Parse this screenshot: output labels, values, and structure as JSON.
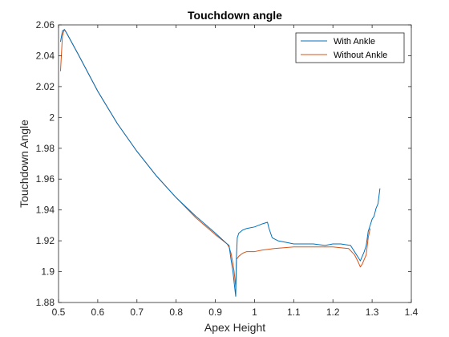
{
  "chart_data": {
    "type": "line",
    "title": "Touchdown angle",
    "xlabel": "Apex Height",
    "ylabel": "Touchdown Angle",
    "xlim": [
      0.5,
      1.4
    ],
    "ylim": [
      1.88,
      2.06
    ],
    "xticks": [
      0.5,
      0.6,
      0.7,
      0.8,
      0.9,
      1,
      1.1,
      1.2,
      1.3,
      1.4
    ],
    "xtick_labels": [
      "0.5",
      "0.6",
      "0.7",
      "0.8",
      "0.9",
      "1",
      "1.1",
      "1.2",
      "1.3",
      "1.4"
    ],
    "yticks": [
      1.88,
      1.9,
      1.92,
      1.94,
      1.96,
      1.98,
      2,
      2.02,
      2.04,
      2.06
    ],
    "ytick_labels": [
      "1.88",
      "1.9",
      "1.92",
      "1.94",
      "1.96",
      "1.98",
      "2",
      "2.02",
      "2.04",
      "2.06"
    ],
    "grid": false,
    "legend_position": "top-right",
    "series": [
      {
        "name": "With Ankle",
        "color": "#0072BD",
        "x": [
          0.505,
          0.51,
          0.515,
          0.52,
          0.55,
          0.6,
          0.65,
          0.7,
          0.75,
          0.8,
          0.85,
          0.9,
          0.93,
          0.935,
          0.94,
          0.945,
          0.948,
          0.952,
          0.954,
          0.956,
          0.96,
          0.97,
          0.98,
          1.0,
          1.02,
          1.033,
          1.037,
          1.045,
          1.06,
          1.08,
          1.1,
          1.15,
          1.18,
          1.2,
          1.22,
          1.245,
          1.255,
          1.265,
          1.27,
          1.28,
          1.285,
          1.29,
          1.295,
          1.3,
          1.305,
          1.31,
          1.315,
          1.32
        ],
        "y": [
          2.049,
          2.056,
          2.057,
          2.055,
          2.041,
          2.017,
          1.996,
          1.978,
          1.962,
          1.948,
          1.936,
          1.925,
          1.918,
          1.917,
          1.908,
          1.9,
          1.893,
          1.884,
          1.91,
          1.922,
          1.925,
          1.927,
          1.928,
          1.929,
          1.931,
          1.932,
          1.928,
          1.922,
          1.92,
          1.919,
          1.918,
          1.918,
          1.917,
          1.918,
          1.918,
          1.917,
          1.913,
          1.909,
          1.907,
          1.913,
          1.917,
          1.926,
          1.93,
          1.934,
          1.936,
          1.941,
          1.944,
          1.954
        ]
      },
      {
        "name": "Without Ankle",
        "color": "#D95319",
        "x": [
          0.505,
          0.51,
          0.515,
          0.52,
          0.55,
          0.6,
          0.65,
          0.7,
          0.75,
          0.8,
          0.85,
          0.9,
          0.93,
          0.935,
          0.94,
          0.945,
          0.948,
          0.952,
          0.954,
          0.96,
          0.97,
          0.98,
          1.0,
          1.02,
          1.05,
          1.1,
          1.15,
          1.2,
          1.24,
          1.255,
          1.265,
          1.27,
          1.275,
          1.28,
          1.285,
          1.29,
          1.295
        ],
        "y": [
          2.03,
          2.053,
          2.057,
          2.055,
          2.041,
          2.017,
          1.996,
          1.978,
          1.962,
          1.948,
          1.935,
          1.924,
          1.918,
          1.916,
          1.912,
          1.905,
          1.9,
          1.89,
          1.908,
          1.91,
          1.912,
          1.913,
          1.913,
          1.914,
          1.915,
          1.916,
          1.916,
          1.916,
          1.915,
          1.911,
          1.906,
          1.903,
          1.905,
          1.908,
          1.911,
          1.922,
          1.928
        ]
      }
    ]
  }
}
